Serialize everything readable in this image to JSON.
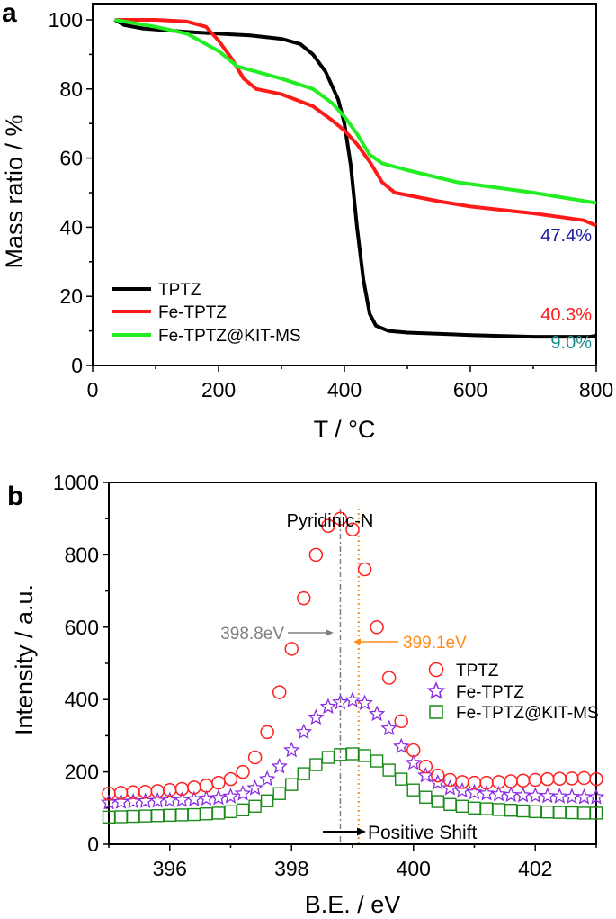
{
  "chart_data": [
    {
      "panel_label": "a",
      "type": "line",
      "xlabel": "T / °C",
      "ylabel": "Mass ratio / %",
      "xlim": [
        0,
        800
      ],
      "ylim": [
        0,
        100
      ],
      "xticks": [
        0,
        200,
        400,
        600,
        800
      ],
      "yticks": [
        0,
        20,
        40,
        60,
        80,
        100
      ],
      "grid": false,
      "legend_position": "bottom-left",
      "series": [
        {
          "name": "TPTZ",
          "color": "#000000",
          "x": [
            35,
            50,
            80,
            150,
            250,
            300,
            330,
            350,
            370,
            390,
            400,
            410,
            420,
            430,
            440,
            450,
            470,
            500,
            600,
            700,
            790,
            800
          ],
          "y": [
            100,
            98.5,
            97.5,
            96.5,
            95.5,
            94.5,
            93,
            90,
            85,
            77,
            70,
            58,
            40,
            25,
            15,
            11.5,
            10,
            9.5,
            8.8,
            8.3,
            8.3,
            8.6
          ]
        },
        {
          "name": "Fe-TPTZ",
          "color": "#ff1a1a",
          "x": [
            35,
            100,
            150,
            180,
            200,
            220,
            240,
            260,
            300,
            350,
            380,
            400,
            420,
            440,
            460,
            480,
            550,
            600,
            700,
            780,
            800
          ],
          "y": [
            100,
            100,
            99.5,
            98,
            94,
            89,
            83,
            80,
            78.5,
            75,
            71,
            68,
            64,
            59,
            53,
            50,
            47.5,
            46,
            44,
            42,
            40.5
          ]
        },
        {
          "name": "Fe-TPTZ@KIT-MS",
          "color": "#22ee22",
          "x": [
            35,
            100,
            150,
            200,
            230,
            260,
            300,
            350,
            380,
            400,
            420,
            440,
            460,
            500,
            580,
            700,
            800
          ],
          "y": [
            100,
            98,
            96,
            91,
            86.5,
            85,
            83,
            80,
            76,
            72,
            67,
            61,
            58.5,
            56.5,
            53,
            50,
            47
          ]
        }
      ],
      "annotations": [
        {
          "text": "47.4%",
          "color": "#1a1aa0"
        },
        {
          "text": "40.3%",
          "color": "#ff1a1a"
        },
        {
          "text": "9.0%",
          "color": "#1a8a8a"
        }
      ]
    },
    {
      "panel_label": "b",
      "type": "scatter",
      "xlabel": "B.E. / eV",
      "ylabel": "Intensity / a.u.",
      "xlim": [
        395,
        403
      ],
      "ylim": [
        0,
        1000
      ],
      "xticks": [
        396,
        398,
        400,
        402
      ],
      "yticks": [
        0,
        200,
        400,
        600,
        800,
        1000
      ],
      "grid": false,
      "legend_position": "right",
      "x": [
        395.0,
        395.2,
        395.4,
        395.6,
        395.8,
        396.0,
        396.2,
        396.4,
        396.6,
        396.8,
        397.0,
        397.2,
        397.4,
        397.6,
        397.8,
        398.0,
        398.2,
        398.4,
        398.6,
        398.8,
        399.0,
        399.2,
        399.4,
        399.6,
        399.8,
        400.0,
        400.2,
        400.4,
        400.6,
        400.8,
        401.0,
        401.2,
        401.4,
        401.6,
        401.8,
        402.0,
        402.2,
        402.4,
        402.6,
        402.8,
        403.0
      ],
      "series": [
        {
          "name": "TPTZ",
          "marker": "circle",
          "color": "#ff2020",
          "values": [
            140,
            142,
            144,
            145,
            147,
            150,
            153,
            157,
            162,
            170,
            180,
            200,
            240,
            310,
            420,
            540,
            680,
            800,
            880,
            900,
            870,
            760,
            600,
            460,
            340,
            260,
            215,
            190,
            178,
            172,
            170,
            170,
            172,
            174,
            176,
            178,
            180,
            181,
            182,
            183,
            180
          ]
        },
        {
          "name": "Fe-TPTZ",
          "marker": "star",
          "color": "#8a2be2",
          "values": [
            115,
            117,
            118,
            119,
            120,
            121,
            122,
            124,
            126,
            128,
            132,
            140,
            155,
            180,
            215,
            260,
            310,
            350,
            380,
            392,
            398,
            390,
            360,
            320,
            270,
            225,
            190,
            170,
            155,
            148,
            143,
            140,
            138,
            136,
            135,
            134,
            133,
            132,
            131,
            130,
            130
          ]
        },
        {
          "name": "Fe-TPTZ@KIT-MS",
          "marker": "square",
          "color": "#1a8a1a",
          "values": [
            75,
            76,
            77,
            78,
            79,
            80,
            81,
            82,
            84,
            86,
            90,
            95,
            105,
            120,
            140,
            165,
            195,
            220,
            240,
            248,
            250,
            245,
            230,
            205,
            180,
            150,
            130,
            118,
            110,
            105,
            100,
            98,
            96,
            94,
            92,
            90,
            89,
            88,
            87,
            86,
            86
          ]
        }
      ],
      "annotations": {
        "title": "Pyridinic-N",
        "line1": {
          "text": "398.8eV",
          "x": 398.8,
          "color": "#808080"
        },
        "line2": {
          "text": "399.1eV",
          "x": 399.1,
          "color": "#ff8c1a"
        },
        "shift": "Positive Shift"
      }
    }
  ]
}
